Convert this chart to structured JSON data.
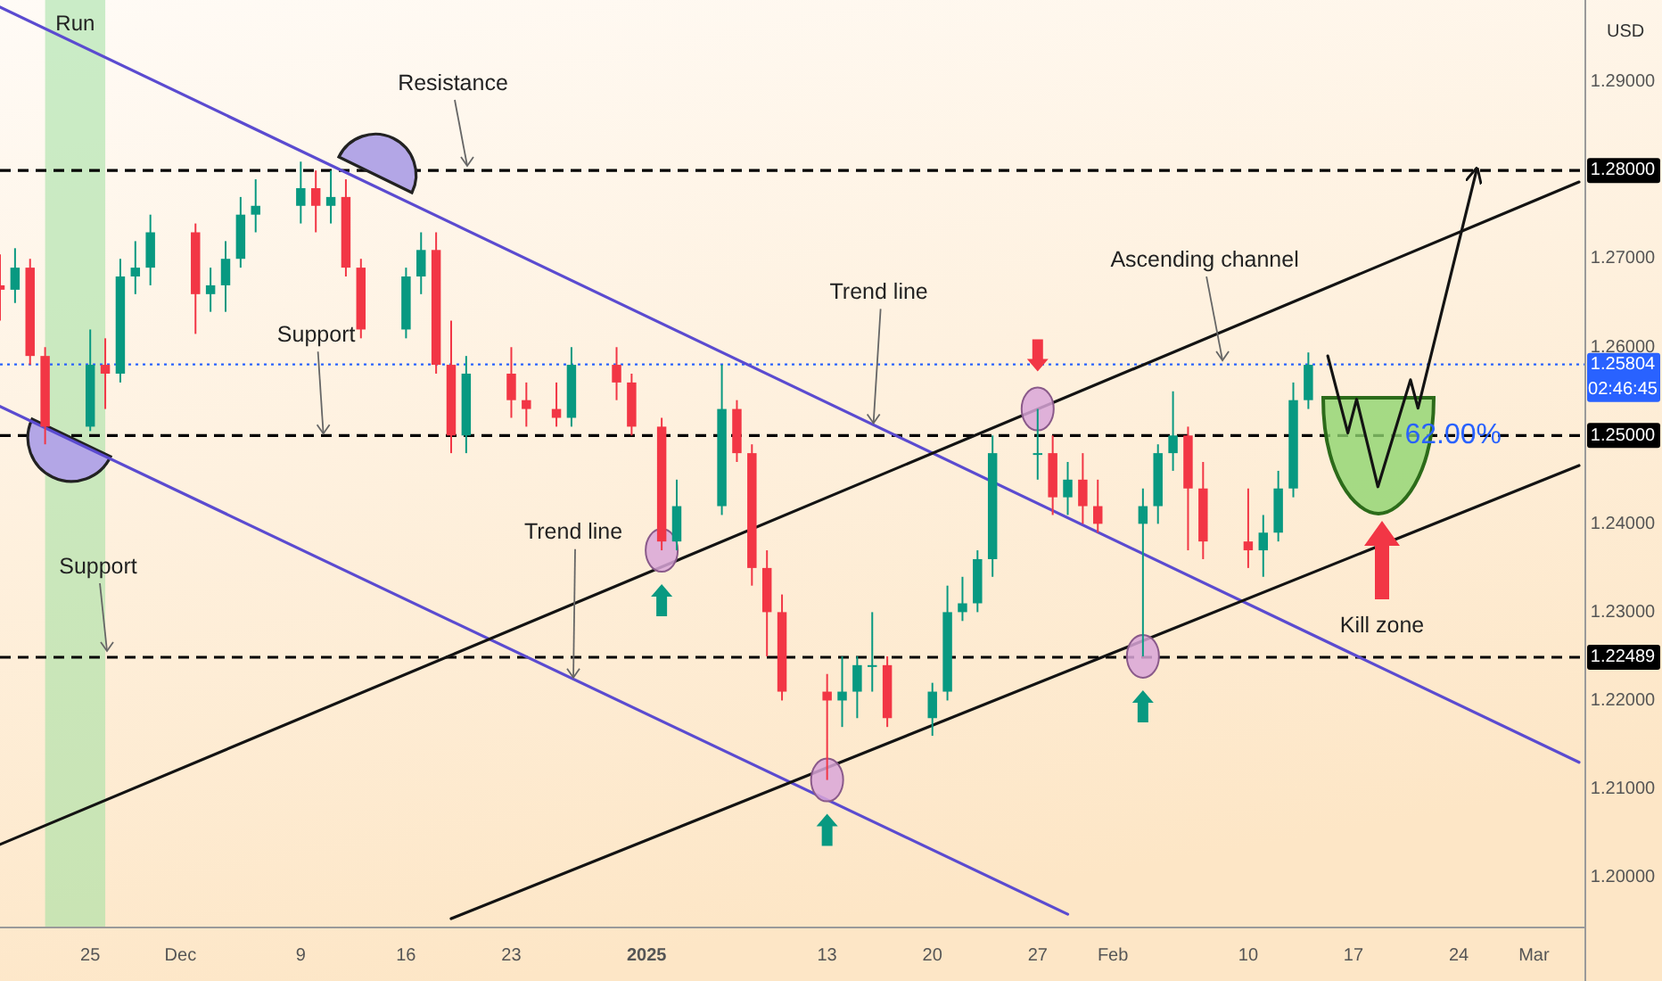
{
  "chart_data": {
    "type": "candlestick",
    "ylabel": "USD",
    "x": [
      "2024-11-19",
      "2024-11-20",
      "2024-11-21",
      "2024-11-22",
      "2024-11-25",
      "2024-11-26",
      "2024-11-27",
      "2024-11-28",
      "2024-11-29",
      "2024-12-02",
      "2024-12-03",
      "2024-12-04",
      "2024-12-05",
      "2024-12-06",
      "2024-12-09",
      "2024-12-10",
      "2024-12-11",
      "2024-12-12",
      "2024-12-13",
      "2024-12-16",
      "2024-12-17",
      "2024-12-18",
      "2024-12-19",
      "2024-12-20",
      "2024-12-23",
      "2024-12-24",
      "2024-12-26",
      "2024-12-27",
      "2024-12-30",
      "2024-12-31",
      "2025-01-02",
      "2025-01-03",
      "2025-01-06",
      "2025-01-07",
      "2025-01-08",
      "2025-01-09",
      "2025-01-10",
      "2025-01-13",
      "2025-01-14",
      "2025-01-15",
      "2025-01-16",
      "2025-01-17",
      "2025-01-20",
      "2025-01-21",
      "2025-01-22",
      "2025-01-23",
      "2025-01-24",
      "2025-01-27",
      "2025-01-28",
      "2025-01-29",
      "2025-01-30",
      "2025-01-31",
      "2025-02-03",
      "2025-02-04",
      "2025-02-05",
      "2025-02-06",
      "2025-02-07",
      "2025-02-10",
      "2025-02-11",
      "2025-02-12",
      "2025-02-13",
      "2025-02-14"
    ],
    "ohlc": [
      [
        1.267,
        1.2705,
        1.263,
        1.2665
      ],
      [
        1.2665,
        1.2712,
        1.265,
        1.269
      ],
      [
        1.269,
        1.27,
        1.258,
        1.259
      ],
      [
        1.259,
        1.26,
        1.249,
        1.251
      ],
      [
        1.251,
        1.262,
        1.2505,
        1.258
      ],
      [
        1.258,
        1.261,
        1.253,
        1.257
      ],
      [
        1.257,
        1.27,
        1.256,
        1.268
      ],
      [
        1.268,
        1.272,
        1.266,
        1.269
      ],
      [
        1.269,
        1.275,
        1.267,
        1.273
      ],
      [
        1.273,
        1.274,
        1.2615,
        1.266
      ],
      [
        1.266,
        1.269,
        1.264,
        1.267
      ],
      [
        1.267,
        1.272,
        1.264,
        1.27
      ],
      [
        1.27,
        1.277,
        1.269,
        1.275
      ],
      [
        1.275,
        1.279,
        1.273,
        1.276
      ],
      [
        1.276,
        1.281,
        1.274,
        1.278
      ],
      [
        1.278,
        1.28,
        1.273,
        1.276
      ],
      [
        1.276,
        1.28,
        1.274,
        1.277
      ],
      [
        1.277,
        1.279,
        1.268,
        1.269
      ],
      [
        1.269,
        1.27,
        1.261,
        1.262
      ],
      [
        1.262,
        1.269,
        1.261,
        1.268
      ],
      [
        1.268,
        1.273,
        1.266,
        1.271
      ],
      [
        1.271,
        1.273,
        1.257,
        1.258
      ],
      [
        1.258,
        1.263,
        1.248,
        1.25
      ],
      [
        1.25,
        1.259,
        1.248,
        1.257
      ],
      [
        1.257,
        1.26,
        1.252,
        1.254
      ],
      [
        1.254,
        1.256,
        1.251,
        1.253
      ],
      [
        1.253,
        1.256,
        1.251,
        1.252
      ],
      [
        1.252,
        1.26,
        1.251,
        1.258
      ],
      [
        1.258,
        1.26,
        1.254,
        1.256
      ],
      [
        1.256,
        1.257,
        1.25,
        1.251
      ],
      [
        1.251,
        1.252,
        1.237,
        1.238
      ],
      [
        1.238,
        1.245,
        1.237,
        1.242
      ],
      [
        1.242,
        1.258,
        1.241,
        1.253
      ],
      [
        1.253,
        1.254,
        1.247,
        1.248
      ],
      [
        1.248,
        1.249,
        1.233,
        1.235
      ],
      [
        1.235,
        1.237,
        1.225,
        1.23
      ],
      [
        1.23,
        1.232,
        1.22,
        1.221
      ],
      [
        1.221,
        1.223,
        1.211,
        1.22
      ],
      [
        1.22,
        1.225,
        1.217,
        1.221
      ],
      [
        1.221,
        1.225,
        1.218,
        1.224
      ],
      [
        1.224,
        1.23,
        1.221,
        1.224
      ],
      [
        1.224,
        1.225,
        1.217,
        1.218
      ],
      [
        1.218,
        1.222,
        1.216,
        1.221
      ],
      [
        1.221,
        1.233,
        1.22,
        1.23
      ],
      [
        1.23,
        1.234,
        1.229,
        1.231
      ],
      [
        1.231,
        1.237,
        1.23,
        1.236
      ],
      [
        1.236,
        1.25,
        1.234,
        1.248
      ],
      [
        1.248,
        1.253,
        1.245,
        1.248
      ],
      [
        1.248,
        1.25,
        1.241,
        1.243
      ],
      [
        1.243,
        1.247,
        1.241,
        1.245
      ],
      [
        1.245,
        1.248,
        1.24,
        1.242
      ],
      [
        1.242,
        1.245,
        1.239,
        1.24
      ],
      [
        1.24,
        1.244,
        1.225,
        1.242
      ],
      [
        1.242,
        1.249,
        1.24,
        1.248
      ],
      [
        1.248,
        1.255,
        1.246,
        1.25
      ],
      [
        1.25,
        1.251,
        1.237,
        1.244
      ],
      [
        1.244,
        1.247,
        1.236,
        1.238
      ],
      [
        1.238,
        1.244,
        1.235,
        1.237
      ],
      [
        1.237,
        1.241,
        1.234,
        1.239
      ],
      [
        1.239,
        1.246,
        1.238,
        1.244
      ],
      [
        1.244,
        1.256,
        1.243,
        1.254
      ],
      [
        1.254,
        1.2594,
        1.253,
        1.258
      ]
    ],
    "colors": [
      "#f23645",
      "#089981",
      "#f23645",
      "#f23645",
      "#089981",
      "#f23645",
      "#089981",
      "#089981",
      "#089981",
      "#f23645",
      "#089981",
      "#089981",
      "#089981",
      "#089981",
      "#089981",
      "#f23645",
      "#089981",
      "#f23645",
      "#f23645",
      "#089981",
      "#089981",
      "#f23645",
      "#f23645",
      "#089981",
      "#f23645",
      "#f23645",
      "#f23645",
      "#089981",
      "#f23645",
      "#f23645",
      "#f23645",
      "#089981",
      "#089981",
      "#f23645",
      "#f23645",
      "#f23645",
      "#f23645",
      "#f23645",
      "#089981",
      "#089981",
      "#089981",
      "#f23645",
      "#089981",
      "#089981",
      "#089981",
      "#089981",
      "#089981",
      "#089981",
      "#f23645",
      "#089981",
      "#f23645",
      "#f23645",
      "#089981",
      "#089981",
      "#089981",
      "#f23645",
      "#f23645",
      "#f23645",
      "#089981",
      "#089981",
      "#089981",
      "#089981"
    ],
    "series": [
      {
        "type": "line",
        "color": "#5b4bd0",
        "line_style": "solid",
        "x": [
          "2024-11-19",
          "2025-03-04"
        ],
        "values": [
          1.2985,
          1.213
        ]
      },
      {
        "type": "line",
        "color": "#5b4bd0",
        "line_style": "solid",
        "x": [
          "2024-11-19",
          "2025-01-29"
        ],
        "values": [
          1.2533,
          1.1958
        ]
      },
      {
        "type": "line",
        "color": "#131313",
        "line_style": "solid",
        "x": [
          "2024-11-19",
          "2025-03-04"
        ],
        "values": [
          1.2037,
          1.2787
        ]
      },
      {
        "type": "line",
        "color": "#131313",
        "line_style": "solid",
        "x": [
          "2024-12-19",
          "2025-03-04"
        ],
        "values": [
          1.1953,
          1.2466
        ]
      },
      {
        "type": "line",
        "color": "#131313",
        "line_style": "solid",
        "x": [
          "2025-02-15T07:00",
          "2025-02-16T15:00",
          "2025-02-17T05:00",
          "2025-02-18T15:00",
          "2025-02-20T19:00",
          "2025-02-21T07:00",
          "2025-02-25T05:00"
        ],
        "values": [
          1.259,
          1.2503,
          1.2541,
          1.2442,
          1.2563,
          1.2531,
          1.2802
        ]
      }
    ],
    "ref_lines": [
      {
        "axis": "y",
        "value": 1.28,
        "label": "1.28000",
        "color": "#000000",
        "line_style": "dashed"
      },
      {
        "axis": "y",
        "value": 1.25,
        "label": "1.25000",
        "color": "#000000",
        "line_style": "dashed"
      },
      {
        "axis": "y",
        "value": 1.22489,
        "label": "1.22489",
        "color": "#000000",
        "line_style": "dashed"
      },
      {
        "axis": "y",
        "value": 1.25804,
        "label": "1.25804",
        "color": "#2962ff",
        "line_style": "dotted"
      }
    ],
    "bands": [
      {
        "axis": "x",
        "from": "2024-11-22",
        "to": "2024-11-26",
        "label": "Run",
        "color": "#9fe0a0"
      }
    ],
    "annotations": [
      "Resistance",
      {
        "text": "Support",
        "x": "2024-12-10T12:00",
        "y": 1.25
      },
      "Support",
      {
        "text": "Trend line",
        "x": "2025-01-16T02:00",
        "y": 1.2512
      },
      {
        "text": "Trend line",
        "x": "2024-12-27T03:00",
        "y": 1.2224
      },
      {
        "text": "Ascending channel",
        "x": "2025-02-08T07:00",
        "y": 1.2583
      },
      {
        "text": "62.00%",
        "x": "2025-02-23T15:00",
        "y": 1.25
      },
      "Kill zone",
      "02:46:45"
    ],
    "xlim": [
      "2024-11-19",
      "2025-03-04T10:00"
    ],
    "ylim": [
      1.1943,
      1.2993
    ],
    "xticks": [
      {
        "value": "2024-11-25",
        "label": "25"
      },
      {
        "value": "2024-12-01",
        "label": "Dec"
      },
      {
        "value": "2024-12-09",
        "label": "9"
      },
      {
        "value": "2024-12-16",
        "label": "16"
      },
      {
        "value": "2024-12-23",
        "label": "23"
      },
      {
        "value": "2025-01-01",
        "label": "2025"
      },
      {
        "value": "2025-01-13",
        "label": "13"
      },
      {
        "value": "2025-01-20",
        "label": "20"
      },
      {
        "value": "2025-01-27",
        "label": "27"
      },
      {
        "value": "2025-02-01",
        "label": "Feb"
      },
      {
        "value": "2025-02-10",
        "label": "10"
      },
      {
        "value": "2025-02-17",
        "label": "17"
      },
      {
        "value": "2025-02-24",
        "label": "24"
      },
      {
        "value": "2025-03-01",
        "label": "Mar"
      }
    ],
    "yticks": [
      {
        "value": 1.2,
        "label": "1.20000"
      },
      {
        "value": 1.21,
        "label": "1.21000"
      },
      {
        "value": 1.22,
        "label": "1.22000"
      },
      {
        "value": 1.23,
        "label": "1.23000"
      },
      {
        "value": 1.24,
        "label": "1.24000"
      },
      {
        "value": 1.26,
        "label": "1.26000"
      },
      {
        "value": 1.27,
        "label": "1.27000"
      },
      {
        "value": 1.29,
        "label": "1.29000"
      }
    ]
  }
}
